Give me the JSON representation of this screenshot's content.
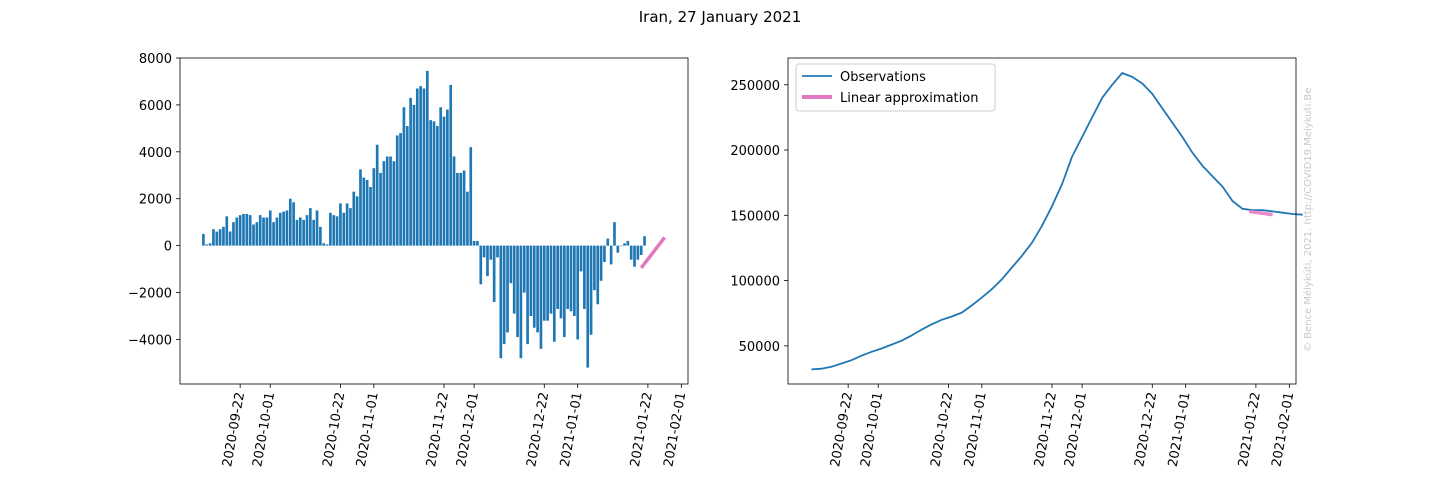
{
  "figure": {
    "title": "Iran, 27 January 2021",
    "watermark": "© Bence Mélykúti, 2021. http://COVID19.Melykuti.Be"
  },
  "colors": {
    "bar": "#1f77b4",
    "line": "#1f77b4",
    "approx": "#e377c2"
  },
  "chart_data": [
    {
      "type": "bar",
      "start_date": "2020-09-11",
      "xlim": [
        "2020-09-04",
        "2021-02-03"
      ],
      "xticks": [
        "2020-09-22",
        "2020-10-01",
        "2020-10-22",
        "2020-11-01",
        "2020-11-22",
        "2020-12-01",
        "2020-12-22",
        "2021-01-01",
        "2021-01-22",
        "2021-02-01"
      ],
      "ylim": [
        -5900,
        8000
      ],
      "yticks": [
        -4000,
        -2000,
        0,
        2000,
        4000,
        6000,
        8000
      ],
      "ytick_labels": [
        "−4000",
        "−2000",
        "0",
        "2000",
        "4000",
        "6000",
        "8000"
      ],
      "values": [
        500,
        50,
        100,
        700,
        600,
        700,
        800,
        1250,
        600,
        1000,
        1200,
        1300,
        1350,
        1350,
        1300,
        900,
        1000,
        1300,
        1200,
        1200,
        1500,
        1000,
        1200,
        1400,
        1450,
        1500,
        2000,
        1850,
        1100,
        1200,
        1100,
        1300,
        1600,
        1100,
        1500,
        800,
        100,
        50,
        1400,
        1300,
        1250,
        1800,
        1400,
        1800,
        1600,
        2300,
        2100,
        3250,
        2900,
        2800,
        2500,
        3300,
        4300,
        3100,
        3600,
        3800,
        3800,
        3600,
        4700,
        4800,
        5900,
        5100,
        6300,
        6000,
        6700,
        6800,
        6700,
        7450,
        5350,
        5300,
        5100,
        5900,
        5500,
        5800,
        6850,
        3800,
        3100,
        3100,
        3200,
        2300,
        4200,
        200,
        200,
        -1650,
        -500,
        -1300,
        -600,
        -2400,
        -500,
        -4800,
        -4200,
        -3700,
        -1600,
        -2900,
        -3900,
        -4800,
        -2000,
        -4200,
        -3000,
        -3500,
        -3700,
        -4400,
        -3200,
        -3200,
        -2900,
        -4100,
        -2700,
        -3100,
        -3900,
        -2700,
        -2800,
        -3000,
        -4000,
        -1100,
        -2700,
        -5200,
        -3800,
        -1900,
        -2500,
        -1500,
        -700,
        300,
        -800,
        1000,
        -300,
        0,
        100,
        200,
        -600,
        -900,
        -600,
        -400,
        400
      ],
      "linear_approximation": {
        "x": [
          "2021-01-20",
          "2021-01-27"
        ],
        "y": [
          -950,
          350
        ]
      }
    },
    {
      "type": "line",
      "start_date": "2020-09-11",
      "xlim": [
        "2020-09-04",
        "2021-02-03"
      ],
      "xticks": [
        "2020-09-22",
        "2020-10-01",
        "2020-10-22",
        "2020-11-01",
        "2020-11-22",
        "2020-12-01",
        "2020-12-22",
        "2021-01-01",
        "2021-01-22",
        "2021-02-01"
      ],
      "ylim": [
        20800,
        270500
      ],
      "yticks": [
        50000,
        100000,
        150000,
        200000,
        250000
      ],
      "series": [
        {
          "name": "Observations",
          "x_every_n_days": 3,
          "values": [
            32000,
            32500,
            34000,
            36500,
            39000,
            42500,
            45500,
            48000,
            51000,
            54000,
            58000,
            62500,
            66500,
            70000,
            72500,
            75500,
            81000,
            87000,
            93500,
            101000,
            110000,
            119000,
            129000,
            142000,
            157000,
            174000,
            195000,
            210000,
            225000,
            240000,
            250000,
            259000,
            256000,
            251000,
            243000,
            232000,
            221000,
            210000,
            198000,
            188000,
            180000,
            172000,
            161000,
            155000,
            154000,
            154000,
            153000,
            152000,
            151000,
            150500
          ]
        },
        {
          "name": "Linear approximation",
          "x": [
            "2021-01-20",
            "2021-01-27"
          ],
          "y": [
            153000,
            150500
          ]
        }
      ]
    }
  ]
}
